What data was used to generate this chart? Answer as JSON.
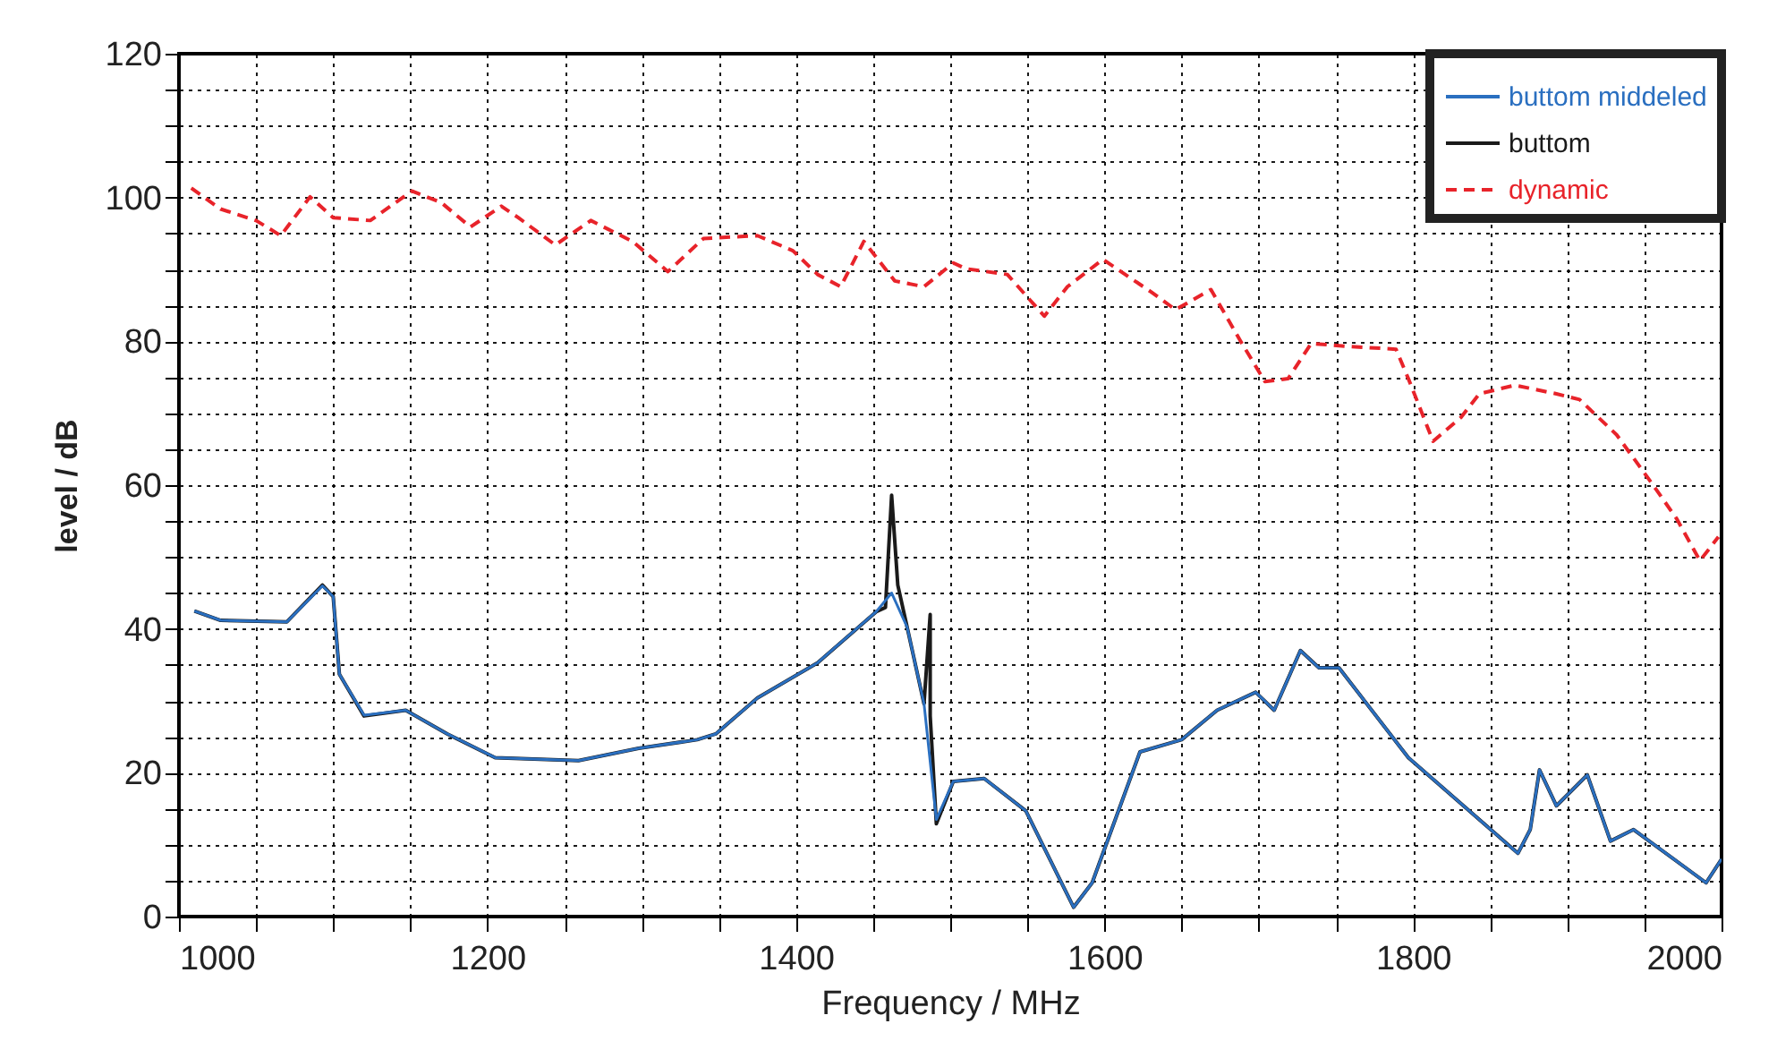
{
  "chart_data": {
    "type": "line",
    "xlabel": "Frequency / MHz",
    "ylabel": "level / dB",
    "xlim": [
      1000,
      2000
    ],
    "ylim": [
      0,
      120
    ],
    "xticks": [
      1000,
      {
        "value": 1050,
        "label": null
      },
      {
        "value": 1100,
        "label": null
      },
      {
        "value": 1150,
        "label": null
      },
      1200,
      {
        "value": 1250,
        "label": null
      },
      {
        "value": 1300,
        "label": null
      },
      {
        "value": 1350,
        "label": null
      },
      1400,
      {
        "value": 1450,
        "label": null
      },
      {
        "value": 1500,
        "label": null
      },
      {
        "value": 1550,
        "label": null
      },
      1600,
      {
        "value": 1650,
        "label": null
      },
      {
        "value": 1700,
        "label": null
      },
      {
        "value": 1750,
        "label": null
      },
      1800,
      {
        "value": 1850,
        "label": null
      },
      {
        "value": 1900,
        "label": null
      },
      {
        "value": 1950,
        "label": null
      },
      2000
    ],
    "yticks": [
      0,
      {
        "value": 5,
        "label": null
      },
      {
        "value": 10,
        "label": null
      },
      {
        "value": 15,
        "label": null
      },
      20,
      {
        "value": 25,
        "label": null
      },
      {
        "value": 30,
        "label": null
      },
      {
        "value": 35,
        "label": null
      },
      40,
      {
        "value": 45,
        "label": null
      },
      {
        "value": 50,
        "label": null
      },
      {
        "value": 55,
        "label": null
      },
      60,
      {
        "value": 65,
        "label": null
      },
      {
        "value": 70,
        "label": null
      },
      {
        "value": 75,
        "label": null
      },
      80,
      {
        "value": 85,
        "label": null
      },
      {
        "value": 90,
        "label": null
      },
      {
        "value": 95,
        "label": null
      },
      100,
      {
        "value": 105,
        "label": null
      },
      {
        "value": 110,
        "label": null
      },
      {
        "value": 115,
        "label": null
      },
      120
    ],
    "grid": true,
    "legend": "top right",
    "series": [
      {
        "name": "buttom middeled",
        "color": "#2a6fc0",
        "line_style": "solid",
        "x": [
          1010,
          1027,
          1070,
          1093,
          1100,
          1104,
          1120,
          1147,
          1174,
          1205,
          1259,
          1298,
          1336,
          1348,
          1375,
          1414,
          1452,
          1462,
          1472,
          1483,
          1491,
          1502,
          1522,
          1549,
          1580,
          1592,
          1623,
          1650,
          1673,
          1698,
          1710,
          1727,
          1739,
          1752,
          1797,
          1868,
          1876,
          1882,
          1893,
          1913,
          1928,
          1943,
          1990,
          2000
        ],
        "values": [
          42.5,
          41.2,
          41,
          46,
          44.5,
          33.7,
          28,
          28.7,
          25.4,
          22.1,
          21.7,
          23.4,
          24.6,
          25.4,
          30.4,
          35.3,
          42.4,
          45,
          40.3,
          29.6,
          13.5,
          18.8,
          19.2,
          14.7,
          1.3,
          4.7,
          22.9,
          24.6,
          28.7,
          31.2,
          28.7,
          37,
          34.6,
          34.6,
          22.1,
          8.8,
          12.1,
          20.4,
          15.4,
          19.7,
          10.5,
          12.1,
          4.7,
          8
        ]
      },
      {
        "name": "buttom",
        "color": "#1a1a1a",
        "line_style": "solid",
        "x": [
          1010,
          1027,
          1070,
          1093,
          1100,
          1104,
          1120,
          1147,
          1174,
          1205,
          1259,
          1298,
          1336,
          1348,
          1375,
          1414,
          1452,
          1458,
          1462,
          1466,
          1472,
          1483,
          1487,
          1487,
          1491,
          1502,
          1522,
          1549,
          1580,
          1592,
          1623,
          1650,
          1673,
          1698,
          1710,
          1727,
          1739,
          1752,
          1797,
          1868,
          1876,
          1882,
          1893,
          1913,
          1928,
          1943,
          1990,
          2000
        ],
        "values": [
          42.5,
          41.2,
          41,
          46.1,
          44.5,
          33.7,
          27.9,
          28.7,
          25.4,
          22.1,
          21.7,
          23.4,
          24.6,
          25.4,
          30.4,
          35.3,
          42.4,
          43,
          58.6,
          46.1,
          40.3,
          29.6,
          42,
          27.9,
          12.9,
          18.8,
          19.2,
          14.7,
          1.3,
          4.7,
          22.9,
          24.6,
          28.7,
          31.2,
          28.7,
          37,
          34.6,
          34.6,
          22.1,
          8.8,
          12.1,
          20.4,
          15.4,
          19.7,
          10.5,
          12.1,
          4.7,
          8
        ]
      },
      {
        "name": "dynamic",
        "color": "#e8232a",
        "line_style": "dashed",
        "x": [
          1008,
          1027,
          1050,
          1066,
          1085,
          1100,
          1124,
          1151,
          1170,
          1189,
          1209,
          1220,
          1244,
          1267,
          1294,
          1317,
          1340,
          1375,
          1398,
          1414,
          1429,
          1444,
          1464,
          1483,
          1502,
          1510,
          1537,
          1561,
          1576,
          1599,
          1630,
          1646,
          1669,
          1688,
          1704,
          1719,
          1734,
          1758,
          1789,
          1797,
          1813,
          1831,
          1843,
          1866,
          1893,
          1908,
          1932,
          1955,
          1971,
          1986,
          1998
        ],
        "values": [
          101.3,
          98.4,
          96.8,
          94.7,
          100.1,
          97.2,
          96.8,
          100.9,
          99.3,
          95.9,
          98.8,
          97.2,
          93.4,
          96.8,
          93.9,
          89.7,
          94.3,
          94.7,
          92.6,
          89.3,
          87.6,
          93.9,
          88.4,
          87.6,
          90.9,
          90.1,
          89.3,
          83.5,
          87.6,
          91.4,
          86.9,
          84.4,
          87.2,
          80.1,
          74.4,
          74.8,
          79.7,
          79.3,
          78.9,
          74.8,
          66.1,
          69.4,
          72.7,
          73.9,
          72.7,
          71.9,
          67,
          60.2,
          55.3,
          49.5,
          52.8
        ]
      }
    ]
  }
}
